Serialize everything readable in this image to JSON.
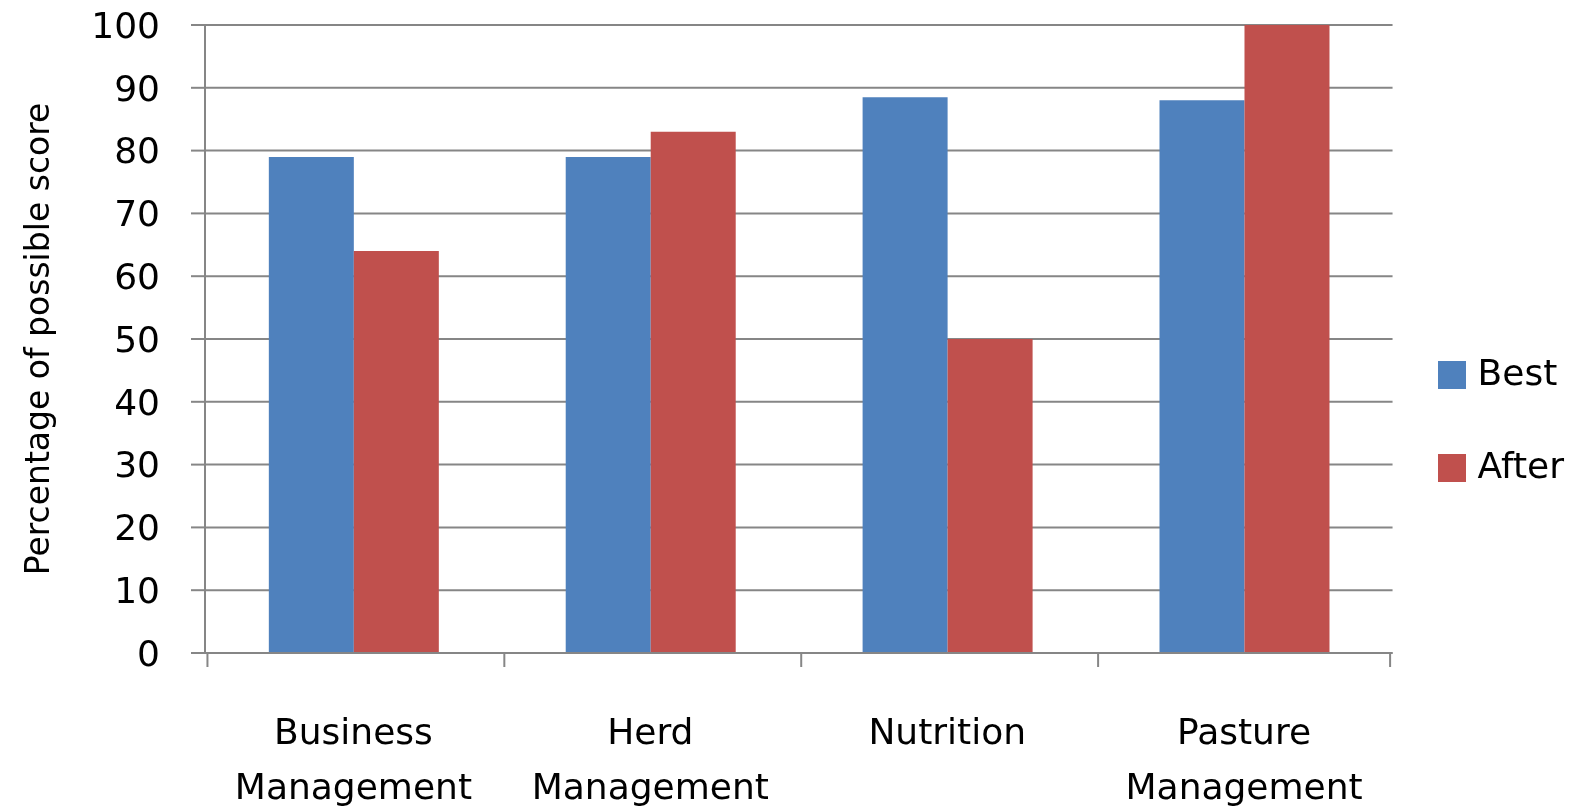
{
  "chart_data": {
    "type": "bar",
    "ylabel": "Percentage of possible score",
    "categories": [
      "Business Management",
      "Herd Management",
      "Nutrition",
      "Pasture Management"
    ],
    "series": [
      {
        "name": "Best",
        "color": "#4f81bd",
        "values": [
          79,
          79,
          88.5,
          88
        ]
      },
      {
        "name": "After",
        "color": "#c0504d",
        "values": [
          64,
          83,
          50,
          100
        ]
      }
    ],
    "ylim": [
      0,
      100
    ],
    "yticks": [
      0,
      10,
      20,
      30,
      40,
      50,
      60,
      70,
      80,
      90,
      100
    ],
    "grid": "y",
    "legend": "right"
  }
}
